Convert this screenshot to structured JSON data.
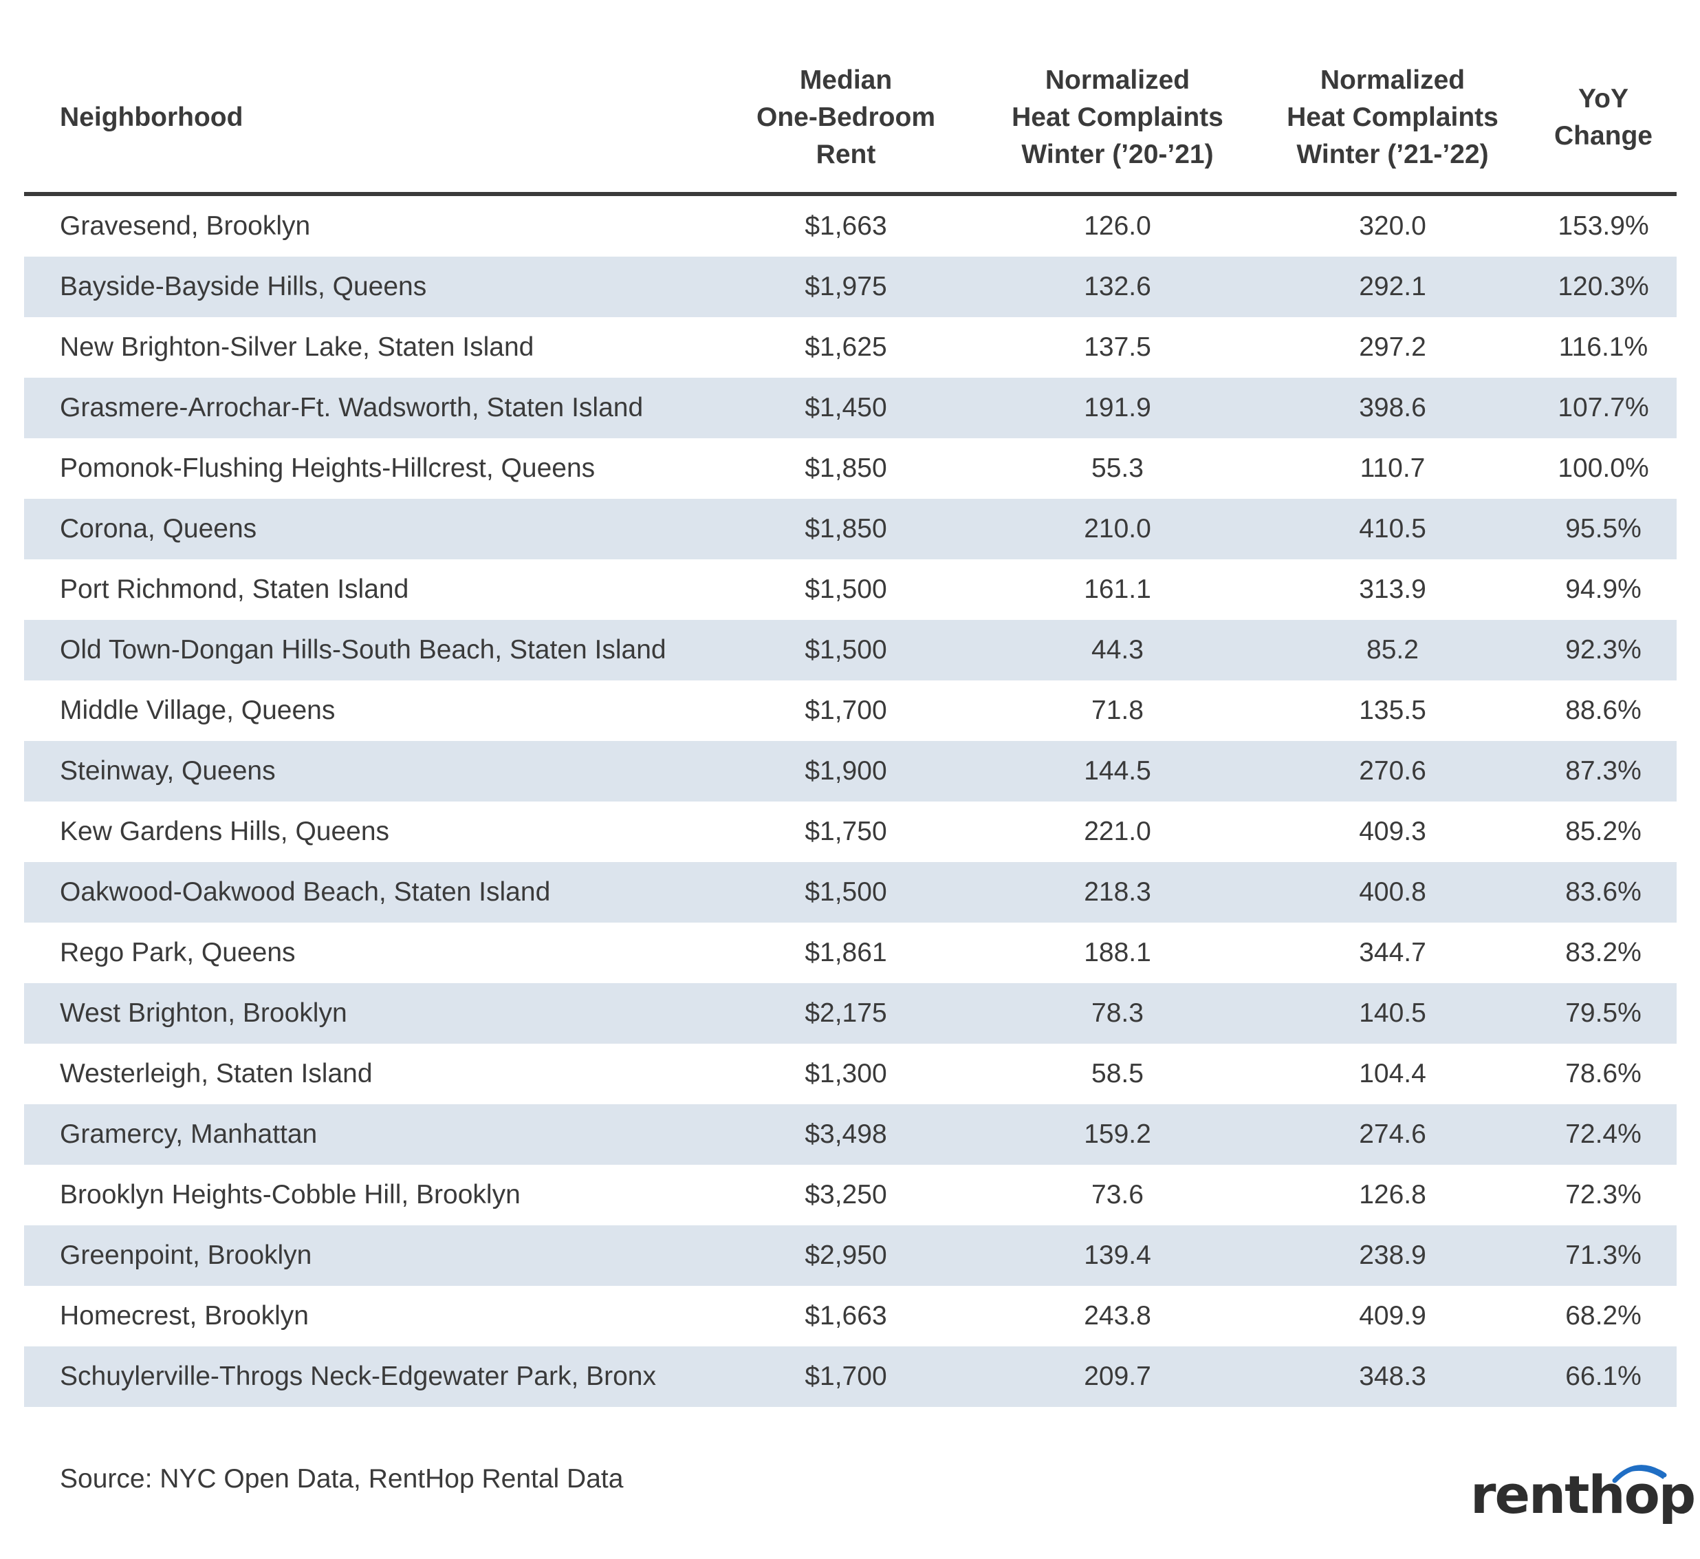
{
  "chart_data": {
    "type": "table",
    "columns": [
      "Neighborhood",
      "Median One-Bedroom Rent",
      "Normalized Heat Complaints Winter ('20-'21)",
      "Normalized Heat Complaints Winter ('21-'22)",
      "YoY Change"
    ],
    "header_lines": [
      [
        "Neighborhood"
      ],
      [
        "Median",
        "One-Bedroom",
        "Rent"
      ],
      [
        "Normalized",
        "Heat Complaints",
        "Winter (’20-’21)"
      ],
      [
        "Normalized",
        "Heat Complaints",
        "Winter (’21-’22)"
      ],
      [
        "YoY",
        "Change"
      ]
    ],
    "rows": [
      [
        "Gravesend, Brooklyn",
        "$1,663",
        "126.0",
        "320.0",
        "153.9%"
      ],
      [
        "Bayside-Bayside Hills, Queens",
        "$1,975",
        "132.6",
        "292.1",
        "120.3%"
      ],
      [
        "New Brighton-Silver Lake, Staten Island",
        "$1,625",
        "137.5",
        "297.2",
        "116.1%"
      ],
      [
        "Grasmere-Arrochar-Ft. Wadsworth, Staten Island",
        "$1,450",
        "191.9",
        "398.6",
        "107.7%"
      ],
      [
        "Pomonok-Flushing Heights-Hillcrest, Queens",
        "$1,850",
        "55.3",
        "110.7",
        "100.0%"
      ],
      [
        "Corona, Queens",
        "$1,850",
        "210.0",
        "410.5",
        "95.5%"
      ],
      [
        "Port Richmond, Staten Island",
        "$1,500",
        "161.1",
        "313.9",
        "94.9%"
      ],
      [
        "Old Town-Dongan Hills-South Beach, Staten Island",
        "$1,500",
        "44.3",
        "85.2",
        "92.3%"
      ],
      [
        "Middle Village, Queens",
        "$1,700",
        "71.8",
        "135.5",
        "88.6%"
      ],
      [
        "Steinway, Queens",
        "$1,900",
        "144.5",
        "270.6",
        "87.3%"
      ],
      [
        "Kew Gardens Hills, Queens",
        "$1,750",
        "221.0",
        "409.3",
        "85.2%"
      ],
      [
        "Oakwood-Oakwood Beach, Staten Island",
        "$1,500",
        "218.3",
        "400.8",
        "83.6%"
      ],
      [
        "Rego Park, Queens",
        "$1,861",
        "188.1",
        "344.7",
        "83.2%"
      ],
      [
        "West Brighton, Brooklyn",
        "$2,175",
        "78.3",
        "140.5",
        "79.5%"
      ],
      [
        "Westerleigh, Staten Island",
        "$1,300",
        "58.5",
        "104.4",
        "78.6%"
      ],
      [
        "Gramercy, Manhattan",
        "$3,498",
        "159.2",
        "274.6",
        "72.4%"
      ],
      [
        "Brooklyn Heights-Cobble Hill, Brooklyn",
        "$3,250",
        "73.6",
        "126.8",
        "72.3%"
      ],
      [
        "Greenpoint, Brooklyn",
        "$2,950",
        "139.4",
        "238.9",
        "71.3%"
      ],
      [
        "Homecrest, Brooklyn",
        "$1,663",
        "243.8",
        "409.9",
        "68.2%"
      ],
      [
        "Schuylerville-Throgs Neck-Edgewater Park, Bronx",
        "$1,700",
        "209.7",
        "348.3",
        "66.1%"
      ]
    ]
  },
  "footer": {
    "source": "Source: NYC Open Data, RentHop Rental Data",
    "logo_text": "renthop"
  },
  "colors": {
    "text": "#3a3a3a",
    "stripe": "#dce4ed",
    "header_rule": "#3a3a3a",
    "logo_arc": "#1f6ec4"
  }
}
